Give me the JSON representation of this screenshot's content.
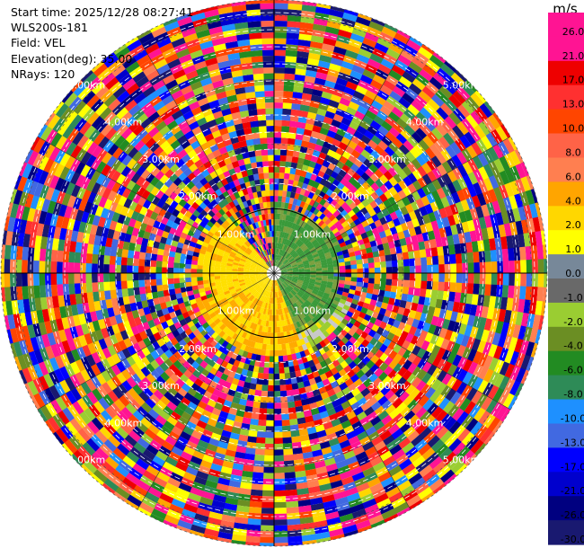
{
  "info": {
    "start_time": "Start time: 2025/12/28 08:27:41",
    "instrument": "WLS200s-181",
    "field": "Field: VEL",
    "elevation": "Elevation(deg): 35.00",
    "nrays": "NRays: 120"
  },
  "chart_data": {
    "type": "heatmap",
    "subtype": "polar-ppi",
    "field": "VEL",
    "nrays": 120,
    "elevation_deg": 35.0,
    "range_rings_km": [
      1.0,
      2.0,
      3.0,
      4.0,
      5.0
    ],
    "ring_labels": [
      "1.00km",
      "2.00km",
      "3.00km",
      "4.00km",
      "5.00km"
    ],
    "unit": "m/s",
    "colorbar": {
      "ticks": [
        "26.0",
        "21.0",
        "17.0",
        "13.0",
        "10.0",
        "8.0",
        "6.0",
        "4.0",
        "2.0",
        "1.0",
        "0.0",
        "-1.0",
        "-2.0",
        "-4.0",
        "-6.0",
        "-8.0",
        "-10.0",
        "-13.0",
        "-17.0",
        "-21.0",
        "-26.0",
        "-30.0"
      ],
      "colors": [
        "#ff1493",
        "#ff1493",
        "#ee0000",
        "#ff3030",
        "#ff4500",
        "#ff6347",
        "#ff7f50",
        "#ffa500",
        "#ffd700",
        "#ffff00",
        "#778899",
        "#696969",
        "#9acd32",
        "#6b8e23",
        "#228b22",
        "#2e8b57",
        "#1e90ff",
        "#4169e1",
        "#0000ff",
        "#0000cd",
        "#000080",
        "#191970"
      ]
    },
    "inner_pattern": {
      "yellow_sector_deg": [
        190,
        320
      ],
      "yellow_color": "#ffe000",
      "orange_color": "#ffaa00",
      "green_sector_deg": [
        0,
        160
      ],
      "green_color": "#3a9a3a",
      "olive_color": "#7aa040"
    }
  }
}
